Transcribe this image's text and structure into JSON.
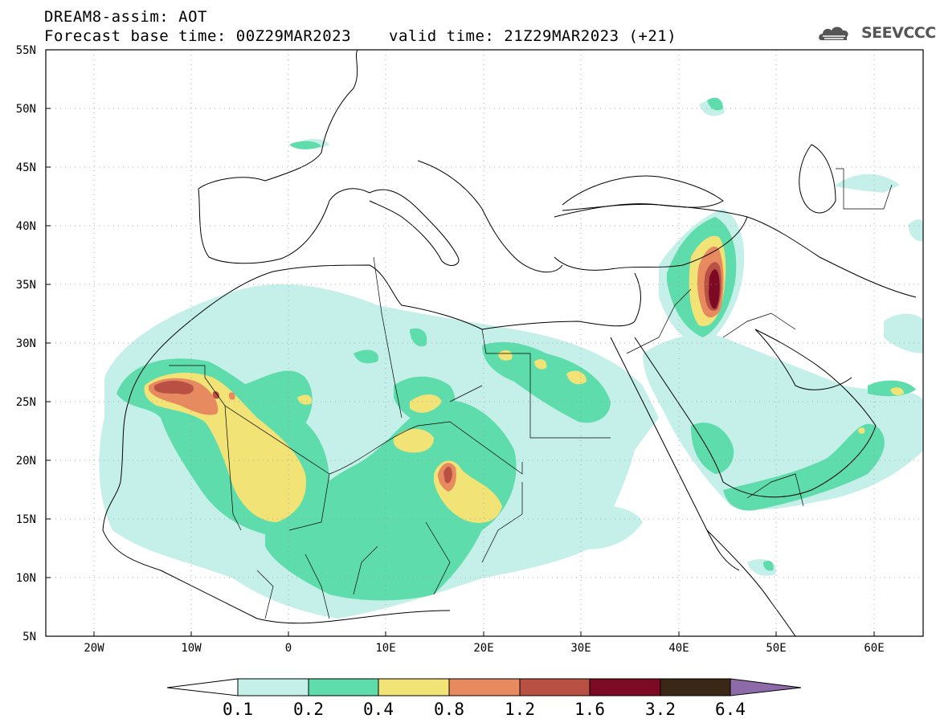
{
  "header": {
    "line1": "DREAM8-assim: AOT",
    "line2": "Forecast base time: 00Z29MAR2023",
    "line3": "valid time: 21Z29MAR2023 (+21)"
  },
  "logo": {
    "text": "SEEVCCC",
    "icon": "cloud-icon"
  },
  "map": {
    "lat_labels": [
      "55N",
      "50N",
      "45N",
      "40N",
      "35N",
      "30N",
      "25N",
      "20N",
      "15N",
      "10N",
      "5N"
    ],
    "lon_labels": [
      "20W",
      "10W",
      "0",
      "10E",
      "20E",
      "30E",
      "40E",
      "50E",
      "60E"
    ],
    "lon_range": [
      -25,
      65
    ],
    "lat_range": [
      5,
      55
    ]
  },
  "colorbar": {
    "labels": [
      "0.1",
      "0.2",
      "0.4",
      "0.8",
      "1.2",
      "1.6",
      "3.2",
      "6.4"
    ],
    "colors": [
      "#c5f0ea",
      "#5fdcab",
      "#f2e377",
      "#e88a60",
      "#b85044",
      "#7c0a24",
      "#3b2715",
      "#8d6ba9"
    ]
  },
  "chart_data": {
    "type": "heatmap",
    "title": "DREAM8-assim: AOT",
    "variable": "AOT",
    "levels": [
      0.1,
      0.2,
      0.4,
      0.8,
      1.2,
      1.6,
      3.2,
      6.4
    ],
    "xlim": [
      -25,
      65
    ],
    "ylim": [
      5,
      55
    ],
    "maxima": [
      {
        "lon": 43.5,
        "lat": 36.5,
        "level": "1.6-3.2"
      },
      {
        "lon": -12.5,
        "lat": 26.0,
        "level": "1.2-1.6"
      },
      {
        "lon": 16.5,
        "lat": 19.0,
        "level": "0.8-1.2"
      }
    ]
  }
}
